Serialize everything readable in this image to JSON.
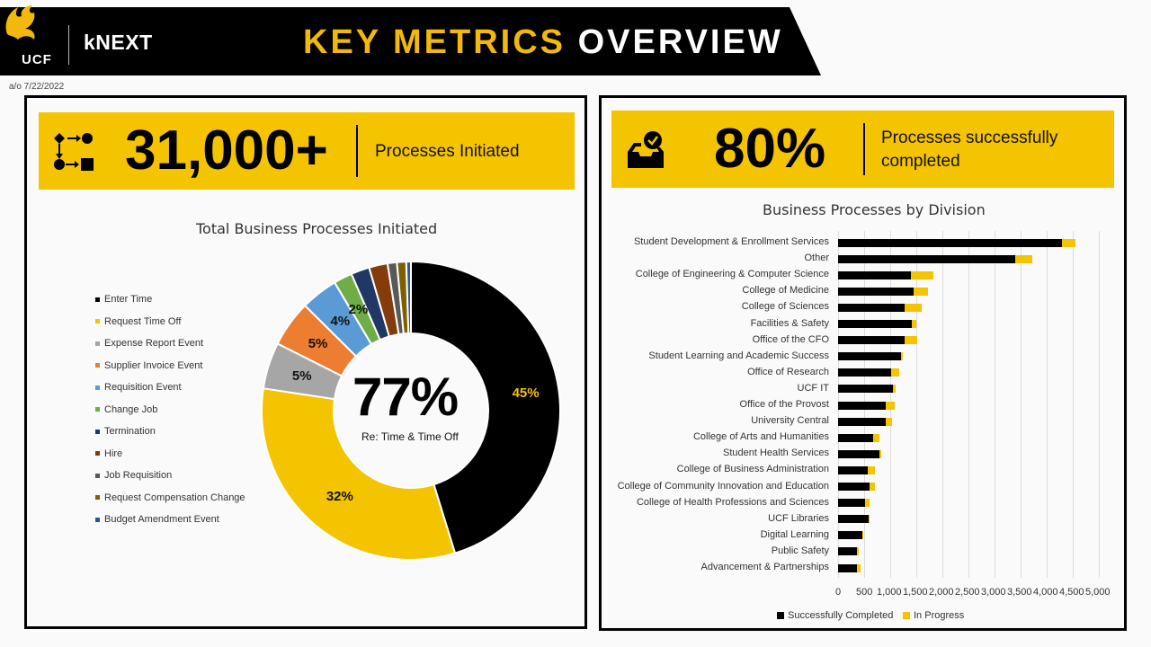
{
  "header": {
    "logo_text": "UCF",
    "brand": "kNEXT",
    "title_part1": "KEY METRICS",
    "title_part2": "OVERVIEW",
    "as_of": "a/o 7/22/2022"
  },
  "kpi_left": {
    "icon": "process-flow-icon",
    "value": "31,000+",
    "label": "Processes Initiated"
  },
  "kpi_right": {
    "icon": "inbox-check-icon",
    "value": "80%",
    "label_line1": "Processes successfully",
    "label_line2": "completed"
  },
  "colors": {
    "gold": "#f5c400",
    "black": "#000000",
    "header_bg": "#000000"
  },
  "donut": {
    "center_value": "77%",
    "center_label": "Re: Time & Time Off"
  },
  "chart_data": [
    {
      "type": "pie",
      "title": "Total Business Processes Initiated",
      "legend_position": "left",
      "categories": [
        "Enter Time",
        "Request Time Off",
        "Expense Report Event",
        "Supplier Invoice Event",
        "Requisition Event",
        "Change Job",
        "Termination",
        "Hire",
        "Job Requisition",
        "Request Compensation Change",
        "Budget Amendment Event"
      ],
      "values": [
        45,
        32,
        5,
        5,
        4,
        2,
        2,
        2,
        1,
        1,
        0.5
      ],
      "labels": [
        "45%",
        "32%",
        "5%",
        "5%",
        "4%",
        "2%",
        "",
        "",
        "",
        "",
        ""
      ],
      "colors": [
        "#000000",
        "#f5c400",
        "#a6a6a6",
        "#ed7d31",
        "#5b9bd5",
        "#70ad47",
        "#1f3864",
        "#843c0c",
        "#595959",
        "#7f6000",
        "#2e5597"
      ]
    },
    {
      "type": "bar",
      "orientation": "horizontal",
      "stacked": true,
      "title": "Business Processes by Division",
      "legend_position": "bottom",
      "grid": true,
      "xlim": [
        0,
        5000
      ],
      "xticks": [
        "0",
        "500",
        "1,000",
        "1,500",
        "2,000",
        "2,500",
        "3,000",
        "3,500",
        "4,000",
        "4,500",
        "5,000"
      ],
      "categories": [
        "Student Development & Enrollment Services",
        "Other",
        "College of Engineering & Computer Science",
        "College of Medicine",
        "College of Sciences",
        "Facilities & Safety",
        "Office of the CFO",
        "Student Learning and Academic Success",
        "Office of Research",
        "UCF IT",
        "Office of the Provost",
        "University Central",
        "College of Arts and Humanities",
        "Student Health Services",
        "College of Business Administration",
        "College of Community Innovation and Education",
        "College of Health Professions and Sciences",
        "UCF Libraries",
        "Digital Learning",
        "Public Safety",
        "Advancement & Partnerships"
      ],
      "series": [
        {
          "name": "Successfully Completed",
          "color": "#000000",
          "values": [
            4300,
            3400,
            1400,
            1450,
            1280,
            1420,
            1280,
            1200,
            1020,
            1060,
            920,
            920,
            680,
            800,
            570,
            600,
            520,
            580,
            460,
            370,
            370
          ]
        },
        {
          "name": "In Progress",
          "color": "#f5c400",
          "values": [
            250,
            330,
            420,
            270,
            330,
            80,
            230,
            40,
            160,
            50,
            160,
            110,
            120,
            20,
            140,
            100,
            80,
            30,
            30,
            30,
            60
          ]
        }
      ]
    }
  ]
}
